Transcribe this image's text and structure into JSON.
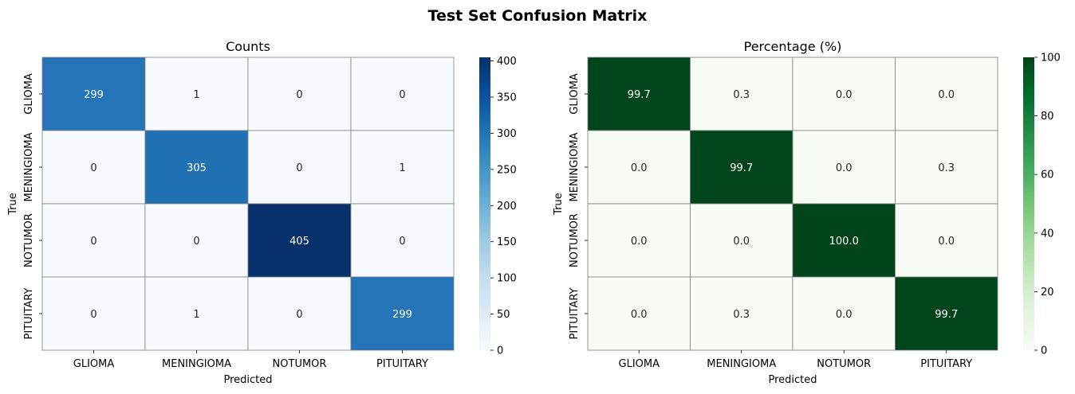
{
  "figure": {
    "title": "Test Set Confusion Matrix"
  },
  "chart_data": [
    {
      "type": "heatmap",
      "title": "Counts",
      "xlabel": "Predicted",
      "ylabel": "True",
      "x_categories": [
        "GLIOMA",
        "MENINGIOMA",
        "NOTUMOR",
        "PITUITARY"
      ],
      "y_categories": [
        "GLIOMA",
        "MENINGIOMA",
        "NOTUMOR",
        "PITUITARY"
      ],
      "values": [
        [
          299,
          1,
          0,
          0
        ],
        [
          0,
          305,
          0,
          1
        ],
        [
          0,
          0,
          405,
          0
        ],
        [
          0,
          1,
          0,
          299
        ]
      ],
      "cell_labels": [
        [
          "299",
          "1",
          "0",
          "0"
        ],
        [
          "0",
          "305",
          "0",
          "1"
        ],
        [
          "0",
          "0",
          "405",
          "0"
        ],
        [
          "0",
          "1",
          "0",
          "299"
        ]
      ],
      "colormap": "Blues",
      "colormap_stops": [
        "#f7fbff",
        "#deebf7",
        "#c6dbef",
        "#9ecae1",
        "#6baed6",
        "#4292c6",
        "#2171b5",
        "#08519c",
        "#08306b"
      ],
      "vmin": 0,
      "vmax": 405,
      "colorbar_ticks": [
        0,
        50,
        100,
        150,
        200,
        250,
        300,
        350,
        400
      ],
      "colorbar_tick_labels": [
        "0",
        "50",
        "100",
        "150",
        "200",
        "250",
        "300",
        "350",
        "400"
      ],
      "grid_color": "#808080"
    },
    {
      "type": "heatmap",
      "title": "Percentage (%)",
      "xlabel": "Predicted",
      "ylabel": "True",
      "x_categories": [
        "GLIOMA",
        "MENINGIOMA",
        "NOTUMOR",
        "PITUITARY"
      ],
      "y_categories": [
        "GLIOMA",
        "MENINGIOMA",
        "NOTUMOR",
        "PITUITARY"
      ],
      "values": [
        [
          99.7,
          0.3,
          0.0,
          0.0
        ],
        [
          0.0,
          99.7,
          0.0,
          0.3
        ],
        [
          0.0,
          0.0,
          100.0,
          0.0
        ],
        [
          0.0,
          0.3,
          0.0,
          99.7
        ]
      ],
      "cell_labels": [
        [
          "99.7",
          "0.3",
          "0.0",
          "0.0"
        ],
        [
          "0.0",
          "99.7",
          "0.0",
          "0.3"
        ],
        [
          "0.0",
          "0.0",
          "100.0",
          "0.0"
        ],
        [
          "0.0",
          "0.3",
          "0.0",
          "99.7"
        ]
      ],
      "colormap": "Greens",
      "colormap_stops": [
        "#f7fcf5",
        "#e5f5e0",
        "#c7e9c0",
        "#a1d99b",
        "#74c476",
        "#41ab5d",
        "#238b45",
        "#006d2c",
        "#00441b"
      ],
      "vmin": 0,
      "vmax": 100,
      "colorbar_ticks": [
        0,
        20,
        40,
        60,
        80,
        100
      ],
      "colorbar_tick_labels": [
        "0",
        "20",
        "40",
        "60",
        "80",
        "100"
      ],
      "grid_color": "#808080"
    }
  ]
}
